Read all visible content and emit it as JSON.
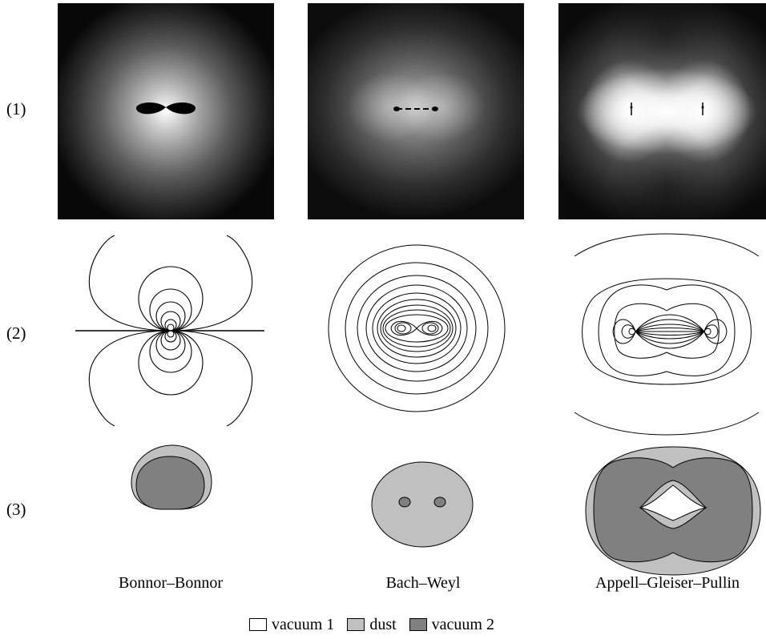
{
  "rows": [
    {
      "label": "(1)"
    },
    {
      "label": "(2)"
    },
    {
      "label": "(3)"
    }
  ],
  "columns": [
    {
      "caption": "Bonnor–Bonnor"
    },
    {
      "caption": "Bach–Weyl"
    },
    {
      "caption": "Appell–Gleiser–Pullin"
    }
  ],
  "legend": {
    "items": [
      {
        "label": "vacuum 1",
        "color": "#ffffff"
      },
      {
        "label": "dust",
        "color": "#c0c0c0"
      },
      {
        "label": "vacuum 2",
        "color": "#808080"
      }
    ]
  }
}
